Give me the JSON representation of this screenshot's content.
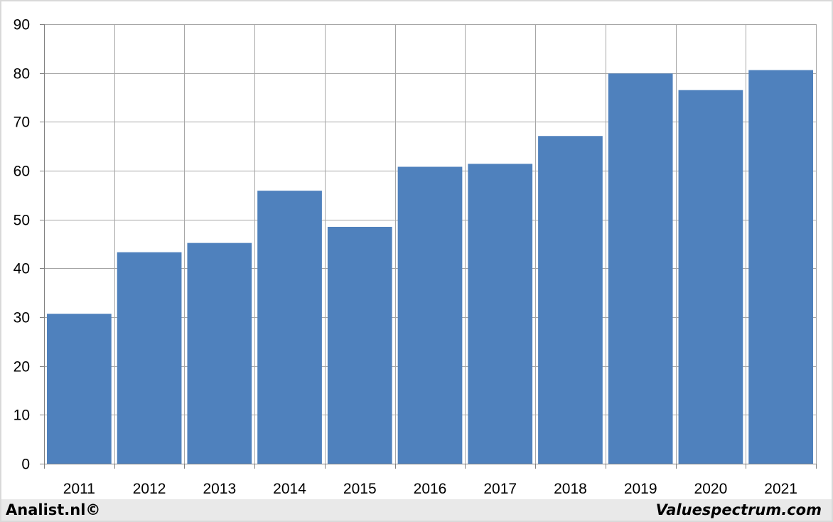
{
  "footer": {
    "left_credit": "Analist.nl©",
    "right_credit": "Valuespectrum.com"
  },
  "colors": {
    "bar": "#4f81bd",
    "grid": "#a6a6a6",
    "axis": "#808080"
  },
  "chart_data": {
    "type": "bar",
    "categories": [
      "2011",
      "2012",
      "2013",
      "2014",
      "2015",
      "2016",
      "2017",
      "2018",
      "2019",
      "2020",
      "2021"
    ],
    "values": [
      30.7,
      43.3,
      45.2,
      55.9,
      48.5,
      60.8,
      61.4,
      67.1,
      79.9,
      76.5,
      80.6
    ],
    "ylim": [
      0,
      90
    ],
    "yticks": [
      0,
      10,
      20,
      30,
      40,
      50,
      60,
      70,
      80,
      90
    ],
    "title": "",
    "xlabel": "",
    "ylabel": "",
    "grid": true,
    "legend": "none"
  }
}
